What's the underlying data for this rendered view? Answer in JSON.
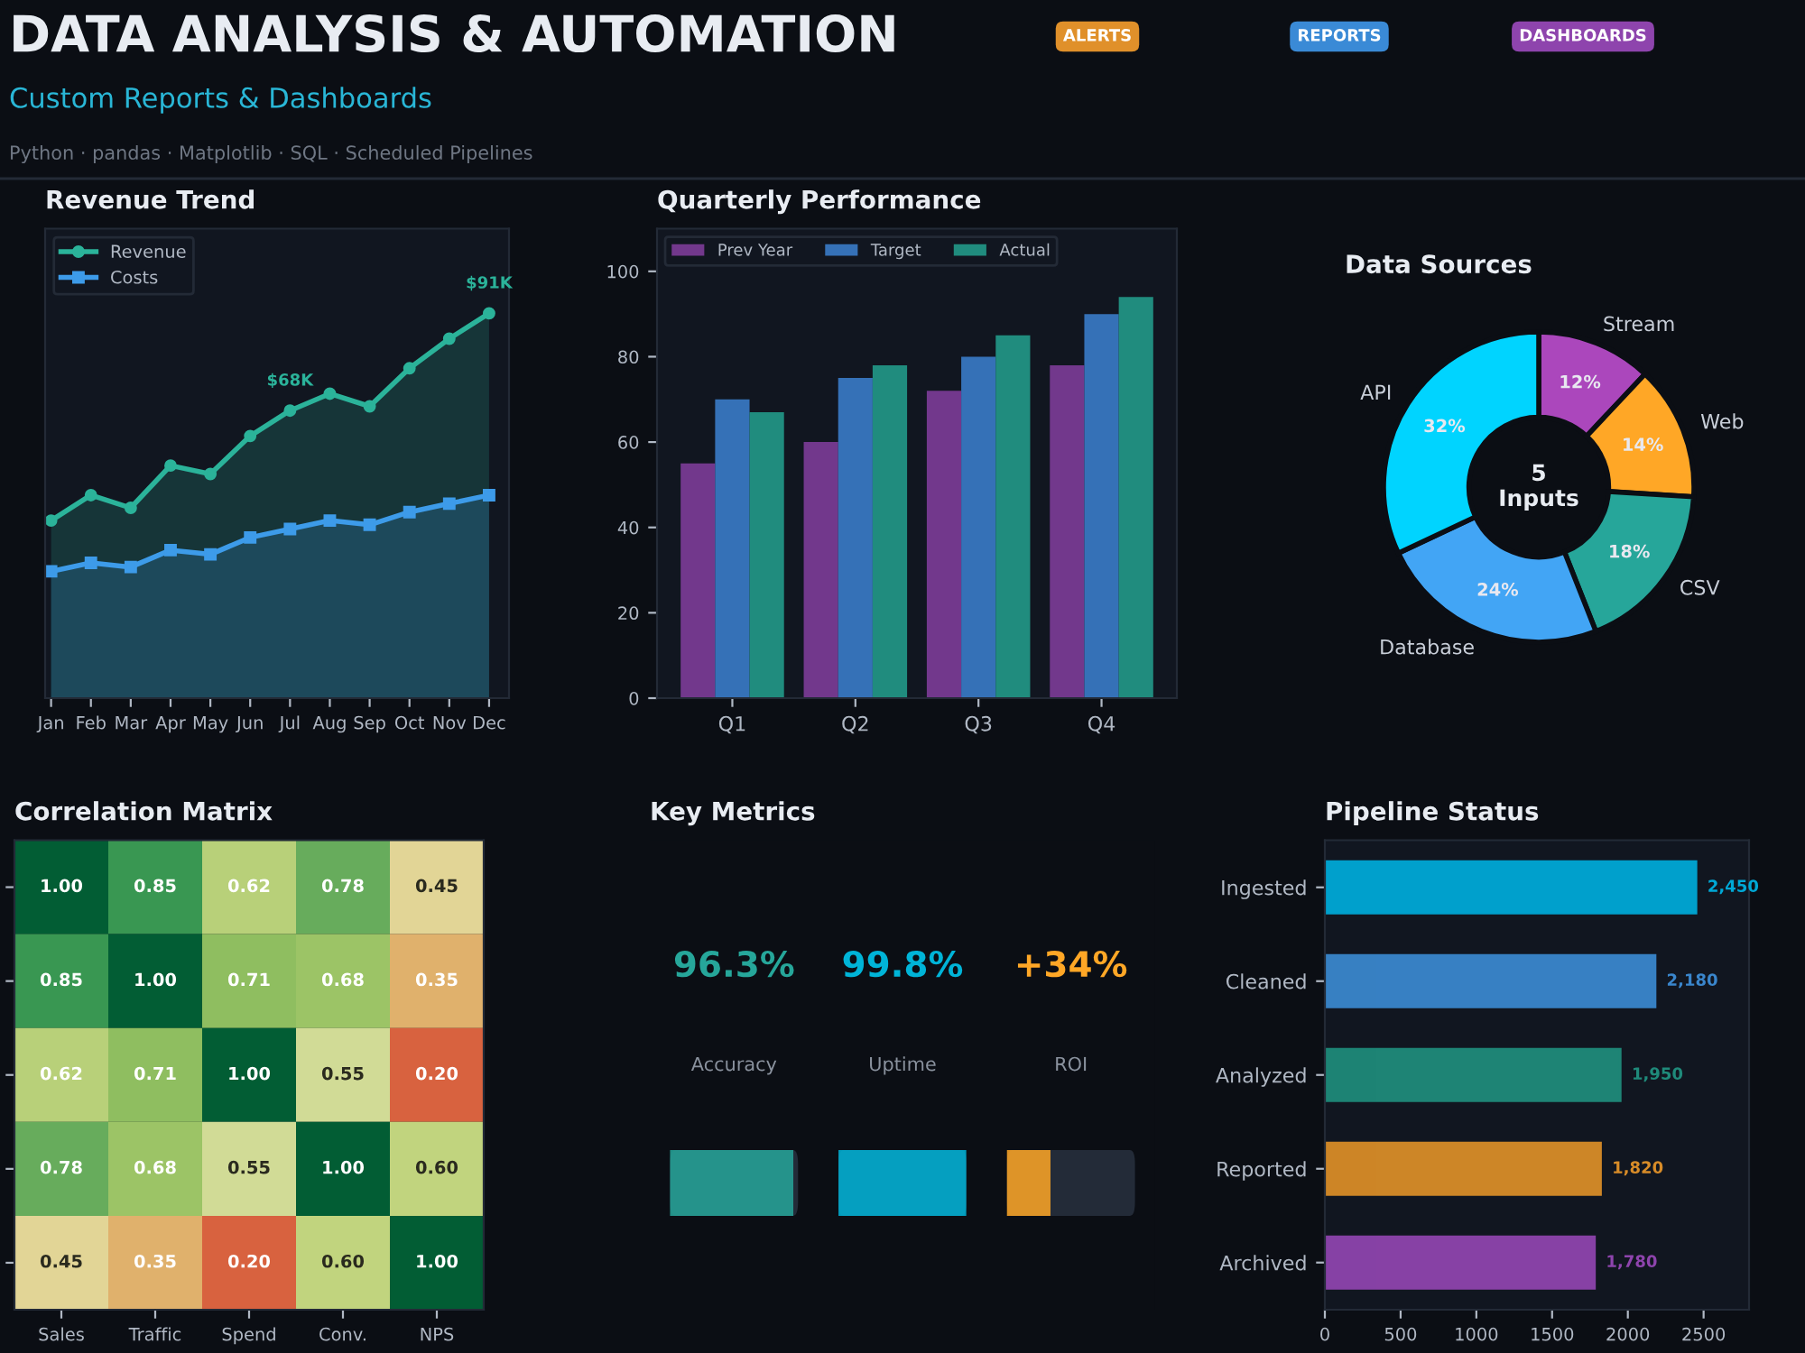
{
  "chart_data": [
    {
      "type": "other",
      "title": "DATA ANALYSIS & AUTOMATION",
      "subtitle": "Custom Reports & Dashboards",
      "annotations": [
        "ALERTS",
        "REPORTS",
        "DASHBOARDS",
        "Python · pandas · Matplotlib · SQL · Scheduled Pipelines"
      ]
    },
    {
      "type": "area",
      "title": "Revenue Trend",
      "legend": "top left",
      "tick_labels": "x",
      "categories": [
        "Jan",
        "Feb",
        "Mar",
        "Apr",
        "May",
        "Jun",
        "Jul",
        "Aug",
        "Sep",
        "Oct",
        "Nov",
        "Dec"
      ],
      "series": [
        {
          "name": "Revenue",
          "color": "#2bb39a",
          "marker": "circle",
          "values": [
            42,
            48,
            45,
            55,
            53,
            62,
            68,
            72,
            69,
            78,
            85,
            91
          ],
          "value_labels": [
            null,
            null,
            null,
            null,
            null,
            null,
            "$68K",
            null,
            null,
            null,
            null,
            "$91K"
          ]
        },
        {
          "name": "Costs",
          "color": "#3d9be9",
          "marker": "square",
          "values": [
            30,
            32,
            31,
            35,
            34,
            38,
            40,
            42,
            41,
            44,
            46,
            48
          ]
        }
      ]
    },
    {
      "type": "bar",
      "title": "Quarterly Performance",
      "legend": "top left",
      "categories": [
        "Q1",
        "Q2",
        "Q3",
        "Q4"
      ],
      "ylim": [
        0,
        110
      ],
      "yticks": [
        0,
        20,
        40,
        60,
        80,
        100
      ],
      "series": [
        {
          "name": "Prev Year",
          "color": "#7d3c98",
          "values": [
            55,
            60,
            72,
            78
          ]
        },
        {
          "name": "Target",
          "color": "#3a7bc8",
          "values": [
            70,
            75,
            80,
            90
          ]
        },
        {
          "name": "Actual",
          "color": "#229988",
          "values": [
            67,
            78,
            85,
            94
          ]
        }
      ]
    },
    {
      "type": "donut",
      "title": "Data Sources",
      "categories": [
        "Stream",
        "Web",
        "CSV",
        "Database",
        "API"
      ],
      "values": [
        12,
        14,
        18,
        24,
        32
      ],
      "colors": [
        "#ab47bc",
        "#ffa726",
        "#26a69a",
        "#42a5f5",
        "#00d4ff"
      ],
      "value_labels": [
        "12%",
        "14%",
        "18%",
        "24%",
        "32%"
      ],
      "annotations": [
        "5\nInputs"
      ]
    },
    {
      "type": "heatmap",
      "title": "Correlation Matrix",
      "categories": [
        "Sales",
        "Traffic",
        "Spend",
        "Conv.",
        "NPS"
      ],
      "y_categories": [
        null,
        null,
        null,
        null,
        null
      ],
      "cells": [
        [
          1.0,
          0.85,
          0.62,
          0.78,
          0.45
        ],
        [
          0.85,
          1.0,
          0.71,
          0.68,
          0.35
        ],
        [
          0.62,
          0.71,
          1.0,
          0.55,
          0.2
        ],
        [
          0.78,
          0.68,
          0.55,
          1.0,
          0.6
        ],
        [
          0.45,
          0.35,
          0.2,
          0.6,
          1.0
        ]
      ],
      "cell_labels": [
        [
          "1.00",
          "0.85",
          "0.62",
          "0.78",
          "0.45"
        ],
        [
          "0.85",
          "1.00",
          "0.71",
          "0.68",
          "0.35"
        ],
        [
          "0.62",
          "0.71",
          "1.00",
          "0.55",
          "0.20"
        ],
        [
          "0.78",
          "0.68",
          "0.55",
          "1.00",
          "0.60"
        ],
        [
          "0.45",
          "0.35",
          "0.20",
          "0.60",
          "1.00"
        ]
      ]
    },
    {
      "type": "other",
      "title": "Key Metrics",
      "categories": [
        "Accuracy",
        "Uptime",
        "ROI"
      ],
      "values": [
        96.3,
        99.8,
        34
      ],
      "value_labels": [
        "96.3%",
        "99.8%",
        "+34%"
      ],
      "colors": [
        "#26a69a",
        "#00b4d8",
        "#ffa726"
      ]
    },
    {
      "type": "bar",
      "title": "Pipeline Status",
      "orientation": "horizontal",
      "categories": [
        "Ingested",
        "Cleaned",
        "Analyzed",
        "Reported",
        "Archived"
      ],
      "values": [
        2450,
        2180,
        1950,
        1820,
        1780
      ],
      "colors": [
        "#00a8d6",
        "#3a86cc",
        "#1f8a7a",
        "#d88c28",
        "#8e44ad"
      ],
      "value_labels": [
        "2,450",
        "2,180",
        "1,950",
        "1,820",
        "1,780"
      ],
      "xlim": [
        0,
        2800
      ],
      "xticks": [
        0,
        500,
        1000,
        1500,
        2000,
        2500
      ]
    }
  ]
}
